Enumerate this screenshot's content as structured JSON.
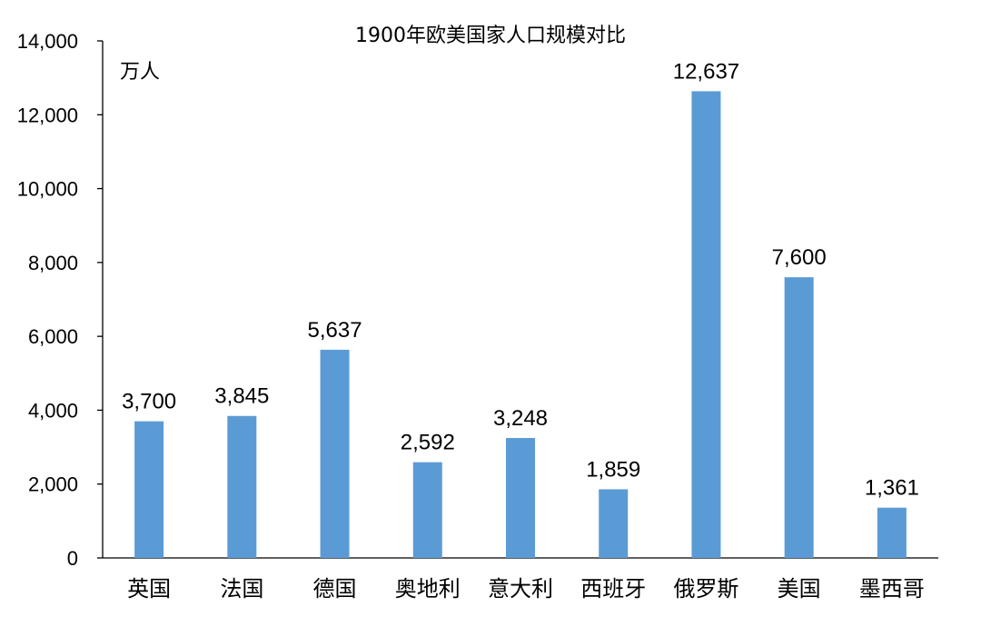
{
  "chart_data": {
    "type": "bar",
    "title": "1900年欧美国家人口规模对比",
    "unit_label": "万人",
    "categories": [
      "英国",
      "法国",
      "德国",
      "奥地利",
      "意大利",
      "西班牙",
      "俄罗斯",
      "美国",
      "墨西哥"
    ],
    "values": [
      3700,
      3845,
      5637,
      2592,
      3248,
      1859,
      12637,
      7600,
      1361
    ],
    "data_labels": [
      "3,700",
      "3,845",
      "5,637",
      "2,592",
      "3,248",
      "1,859",
      "12,637",
      "7,600",
      "1,361"
    ],
    "ylim": [
      0,
      14000
    ],
    "yticks": [
      0,
      2000,
      4000,
      6000,
      8000,
      10000,
      12000,
      14000
    ],
    "ytick_labels": [
      "0",
      "2,000",
      "4,000",
      "6,000",
      "8,000",
      "10,000",
      "12,000",
      "14,000"
    ],
    "grid": false,
    "legend": "none",
    "bar_color": "#5b9bd5"
  }
}
